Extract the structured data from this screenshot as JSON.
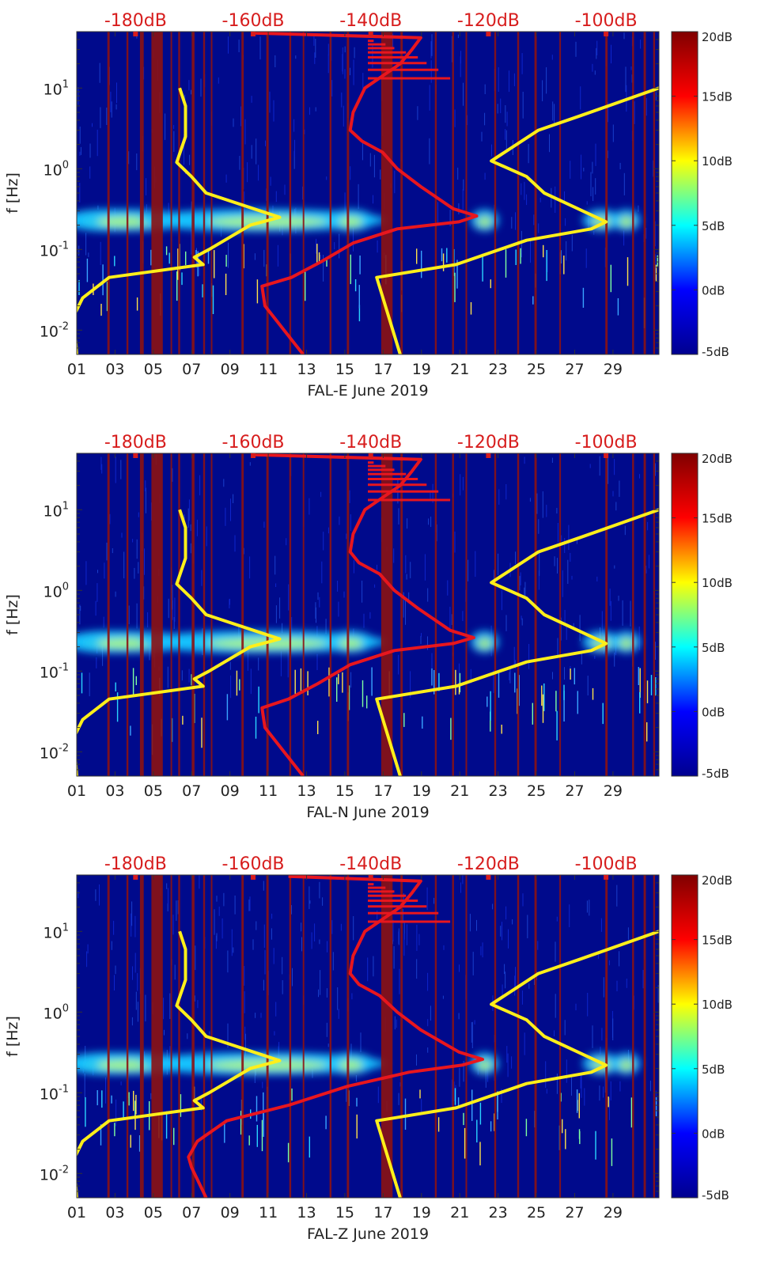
{
  "theme": {
    "background": "#000a8c",
    "ref_curve_color": "#ffef1a",
    "spectrum_curve_color": "#e8161e",
    "top_axis_label_color": "#d71d1d",
    "band_color": "#8c1212",
    "colormap": [
      "#00008f",
      "#0000ff",
      "#00ffff",
      "#ffff00",
      "#ff0000",
      "#800000"
    ]
  },
  "colorbar": {
    "ticks": [
      "20dB",
      "15dB",
      "10dB",
      "5dB",
      "0dB",
      "-5dB"
    ],
    "range": [
      -5,
      20
    ]
  },
  "chart_data": [
    {
      "type": "heatmap",
      "title": "",
      "xlabel": "FAL-E June 2019",
      "ylabel": "f [Hz]",
      "x_ticks": [
        "01",
        "03",
        "05",
        "07",
        "09",
        "11",
        "13",
        "15",
        "17",
        "19",
        "21",
        "23",
        "25",
        "27",
        "29"
      ],
      "xlim": [
        1,
        31.4
      ],
      "y_ticks": [
        {
          "base": "10",
          "exp": "1",
          "value": 10
        },
        {
          "base": "10",
          "exp": "0",
          "value": 1
        },
        {
          "base": "10",
          "exp": "-1",
          "value": 0.1
        },
        {
          "base": "10",
          "exp": "-2",
          "value": 0.01
        }
      ],
      "ylim": [
        0.005,
        50
      ],
      "top_axis": {
        "labels": [
          "-180dB",
          "-160dB",
          "-140dB",
          "-120dB",
          "-100dB"
        ],
        "values": [
          -180,
          -160,
          -140,
          -120,
          -100
        ],
        "range": [
          -190,
          -91
        ]
      },
      "colorbar_range_db": [
        -5,
        20
      ],
      "ref_curves": [
        {
          "name": "low-noise-model",
          "points": [
            [
              -190,
              0.005
            ],
            [
              -190.5,
              0.015
            ],
            [
              -189,
              0.025
            ],
            [
              -184.5,
              0.045
            ],
            [
              -168.5,
              0.065
            ],
            [
              -170,
              0.08
            ],
            [
              -167.5,
              0.1
            ],
            [
              -160.5,
              0.2
            ],
            [
              -155.5,
              0.25
            ],
            [
              -168,
              0.5
            ],
            [
              -170.5,
              0.8
            ],
            [
              -173,
              1.2
            ],
            [
              -171.5,
              2.5
            ],
            [
              -171.5,
              6
            ],
            [
              -172.5,
              10
            ]
          ]
        },
        {
          "name": "high-noise-model",
          "points": [
            [
              -135,
              0.005
            ],
            [
              -139,
              0.045
            ],
            [
              -125.5,
              0.065
            ],
            [
              -113.5,
              0.13
            ],
            [
              -102.5,
              0.18
            ],
            [
              -100,
              0.22
            ],
            [
              -110.5,
              0.5
            ],
            [
              -113.5,
              0.8
            ],
            [
              -119.5,
              1.25
            ],
            [
              -111.5,
              3
            ],
            [
              -104.5,
              4.5
            ],
            [
              -91,
              10
            ]
          ]
        }
      ],
      "spectrum_curve": [
        [
          -151.5,
          0.005
        ],
        [
          -158,
          0.02
        ],
        [
          -158.5,
          0.035
        ],
        [
          -153.5,
          0.045
        ],
        [
          -148.5,
          0.07
        ],
        [
          -143,
          0.12
        ],
        [
          -135.5,
          0.18
        ],
        [
          -125,
          0.22
        ],
        [
          -122,
          0.26
        ],
        [
          -126,
          0.32
        ],
        [
          -131.5,
          0.6
        ],
        [
          -135.5,
          1
        ],
        [
          -138,
          1.6
        ],
        [
          -141.5,
          2.2
        ],
        [
          -143.5,
          3
        ],
        [
          -143,
          5
        ],
        [
          -141,
          10
        ],
        [
          -135,
          20
        ],
        [
          -133,
          30
        ],
        [
          -131.5,
          42
        ],
        [
          -160,
          48
        ]
      ],
      "maxima_spikes": [
        -140.5,
        -139.5,
        -137.5,
        -136,
        -134,
        -132,
        -130.5,
        -128.5,
        -126.5
      ]
    },
    {
      "type": "heatmap",
      "title": "",
      "xlabel": "FAL-N June 2019",
      "ylabel": "f [Hz]",
      "x_ticks": [
        "01",
        "03",
        "05",
        "07",
        "09",
        "11",
        "13",
        "15",
        "17",
        "19",
        "21",
        "23",
        "25",
        "27",
        "29"
      ],
      "xlim": [
        1,
        31.4
      ],
      "y_ticks": [
        {
          "base": "10",
          "exp": "1",
          "value": 10
        },
        {
          "base": "10",
          "exp": "0",
          "value": 1
        },
        {
          "base": "10",
          "exp": "-1",
          "value": 0.1
        },
        {
          "base": "10",
          "exp": "-2",
          "value": 0.01
        }
      ],
      "ylim": [
        0.005,
        50
      ],
      "top_axis": {
        "labels": [
          "-180dB",
          "-160dB",
          "-140dB",
          "-120dB",
          "-100dB"
        ],
        "values": [
          -180,
          -160,
          -140,
          -120,
          -100
        ],
        "range": [
          -190,
          -91
        ]
      },
      "colorbar_range_db": [
        -5,
        20
      ],
      "ref_curves": [
        {
          "name": "low-noise-model",
          "points": [
            [
              -190,
              0.005
            ],
            [
              -190.5,
              0.015
            ],
            [
              -189,
              0.025
            ],
            [
              -184.5,
              0.045
            ],
            [
              -168.5,
              0.065
            ],
            [
              -170,
              0.08
            ],
            [
              -167.5,
              0.1
            ],
            [
              -160.5,
              0.2
            ],
            [
              -155.5,
              0.25
            ],
            [
              -168,
              0.5
            ],
            [
              -170.5,
              0.8
            ],
            [
              -173,
              1.2
            ],
            [
              -171.5,
              2.5
            ],
            [
              -171.5,
              6
            ],
            [
              -172.5,
              10
            ]
          ]
        },
        {
          "name": "high-noise-model",
          "points": [
            [
              -135,
              0.005
            ],
            [
              -139,
              0.045
            ],
            [
              -125.5,
              0.065
            ],
            [
              -113.5,
              0.13
            ],
            [
              -102.5,
              0.18
            ],
            [
              -100,
              0.22
            ],
            [
              -110.5,
              0.5
            ],
            [
              -113.5,
              0.8
            ],
            [
              -119.5,
              1.25
            ],
            [
              -111.5,
              3
            ],
            [
              -104.5,
              4.5
            ],
            [
              -91,
              10
            ]
          ]
        }
      ],
      "spectrum_curve": [
        [
          -151.5,
          0.005
        ],
        [
          -158,
          0.02
        ],
        [
          -158.5,
          0.035
        ],
        [
          -154,
          0.045
        ],
        [
          -149,
          0.07
        ],
        [
          -143.5,
          0.12
        ],
        [
          -136,
          0.18
        ],
        [
          -126,
          0.22
        ],
        [
          -122.5,
          0.26
        ],
        [
          -126.5,
          0.32
        ],
        [
          -132,
          0.6
        ],
        [
          -136,
          1
        ],
        [
          -138.5,
          1.6
        ],
        [
          -142,
          2.2
        ],
        [
          -143.5,
          3
        ],
        [
          -143,
          5
        ],
        [
          -141,
          10
        ],
        [
          -135,
          20
        ],
        [
          -133,
          30
        ],
        [
          -131.5,
          42
        ],
        [
          -160,
          48
        ]
      ],
      "maxima_spikes": [
        -140.5,
        -139.5,
        -137.5,
        -136,
        -134,
        -132,
        -130.5,
        -128.5,
        -126.5
      ]
    },
    {
      "type": "heatmap",
      "title": "",
      "xlabel": "FAL-Z June 2019",
      "ylabel": "f [Hz]",
      "x_ticks": [
        "01",
        "03",
        "05",
        "07",
        "09",
        "11",
        "13",
        "15",
        "17",
        "19",
        "21",
        "23",
        "25",
        "27",
        "29"
      ],
      "xlim": [
        1,
        31.4
      ],
      "y_ticks": [
        {
          "base": "10",
          "exp": "1",
          "value": 10
        },
        {
          "base": "10",
          "exp": "0",
          "value": 1
        },
        {
          "base": "10",
          "exp": "-1",
          "value": 0.1
        },
        {
          "base": "10",
          "exp": "-2",
          "value": 0.01
        }
      ],
      "ylim": [
        0.005,
        50
      ],
      "top_axis": {
        "labels": [
          "-180dB",
          "-160dB",
          "-140dB",
          "-120dB",
          "-100dB"
        ],
        "values": [
          -180,
          -160,
          -140,
          -120,
          -100
        ],
        "range": [
          -190,
          -91
        ]
      },
      "colorbar_range_db": [
        -5,
        20
      ],
      "ref_curves": [
        {
          "name": "low-noise-model",
          "points": [
            [
              -190,
              0.005
            ],
            [
              -190.5,
              0.015
            ],
            [
              -189,
              0.025
            ],
            [
              -184.5,
              0.045
            ],
            [
              -168.5,
              0.065
            ],
            [
              -170,
              0.08
            ],
            [
              -167.5,
              0.1
            ],
            [
              -160.5,
              0.2
            ],
            [
              -155.5,
              0.25
            ],
            [
              -168,
              0.5
            ],
            [
              -170.5,
              0.8
            ],
            [
              -173,
              1.2
            ],
            [
              -171.5,
              2.5
            ],
            [
              -171.5,
              6
            ],
            [
              -172.5,
              10
            ]
          ]
        },
        {
          "name": "high-noise-model",
          "points": [
            [
              -135,
              0.005
            ],
            [
              -139,
              0.045
            ],
            [
              -125.5,
              0.065
            ],
            [
              -113.5,
              0.13
            ],
            [
              -102.5,
              0.18
            ],
            [
              -100,
              0.22
            ],
            [
              -110.5,
              0.5
            ],
            [
              -113.5,
              0.8
            ],
            [
              -119.5,
              1.25
            ],
            [
              -111.5,
              3
            ],
            [
              -104.5,
              4.5
            ],
            [
              -91,
              10
            ]
          ]
        }
      ],
      "spectrum_curve": [
        [
          -168,
          0.005
        ],
        [
          -170.5,
          0.012
        ],
        [
          -171,
          0.016
        ],
        [
          -169.5,
          0.025
        ],
        [
          -164.5,
          0.045
        ],
        [
          -154,
          0.07
        ],
        [
          -144,
          0.12
        ],
        [
          -133.5,
          0.18
        ],
        [
          -124.5,
          0.22
        ],
        [
          -121,
          0.26
        ],
        [
          -125,
          0.32
        ],
        [
          -131.5,
          0.6
        ],
        [
          -135.5,
          1
        ],
        [
          -138.5,
          1.6
        ],
        [
          -142,
          2.2
        ],
        [
          -143.5,
          3
        ],
        [
          -143,
          5
        ],
        [
          -141,
          10
        ],
        [
          -135,
          20
        ],
        [
          -133,
          30
        ],
        [
          -131.5,
          42
        ],
        [
          -154,
          48
        ]
      ],
      "maxima_spikes": [
        -140.5,
        -139.5,
        -137.5,
        -136,
        -134,
        -132,
        -130.5,
        -128.5,
        -126.5
      ]
    }
  ]
}
